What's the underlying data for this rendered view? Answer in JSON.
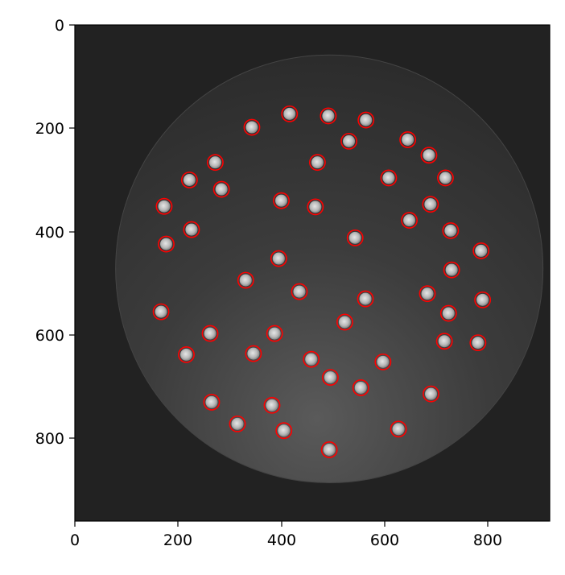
{
  "figure": {
    "x_ticks": [
      "0",
      "200",
      "400",
      "600",
      "800"
    ],
    "y_ticks": [
      "0",
      "200",
      "400",
      "600",
      "800"
    ]
  },
  "image": {
    "width": 920,
    "height": 960,
    "background_color": "#222222",
    "dish": {
      "center": [
        493,
        472
      ],
      "radius": 414
    }
  },
  "chart_data": {
    "type": "scatter",
    "title": "",
    "xlabel": "",
    "ylabel": "",
    "xlim": [
      0,
      920
    ],
    "ylim": [
      960,
      0
    ],
    "marker_color": "#ff0000",
    "marker_radius": 15,
    "circles": [
      {
        "x": 416,
        "y": 172
      },
      {
        "x": 491,
        "y": 176
      },
      {
        "x": 564,
        "y": 184
      },
      {
        "x": 343,
        "y": 198
      },
      {
        "x": 531,
        "y": 225
      },
      {
        "x": 645,
        "y": 222
      },
      {
        "x": 686,
        "y": 252
      },
      {
        "x": 470,
        "y": 266
      },
      {
        "x": 272,
        "y": 266
      },
      {
        "x": 608,
        "y": 296
      },
      {
        "x": 718,
        "y": 296
      },
      {
        "x": 222,
        "y": 300
      },
      {
        "x": 284,
        "y": 318
      },
      {
        "x": 400,
        "y": 340
      },
      {
        "x": 466,
        "y": 352
      },
      {
        "x": 689,
        "y": 347
      },
      {
        "x": 173,
        "y": 351
      },
      {
        "x": 648,
        "y": 378
      },
      {
        "x": 728,
        "y": 398
      },
      {
        "x": 226,
        "y": 396
      },
      {
        "x": 543,
        "y": 412
      },
      {
        "x": 177,
        "y": 424
      },
      {
        "x": 787,
        "y": 437
      },
      {
        "x": 395,
        "y": 452
      },
      {
        "x": 730,
        "y": 474
      },
      {
        "x": 331,
        "y": 494
      },
      {
        "x": 435,
        "y": 516
      },
      {
        "x": 683,
        "y": 520
      },
      {
        "x": 563,
        "y": 530
      },
      {
        "x": 790,
        "y": 532
      },
      {
        "x": 167,
        "y": 555
      },
      {
        "x": 724,
        "y": 558
      },
      {
        "x": 523,
        "y": 575
      },
      {
        "x": 262,
        "y": 597
      },
      {
        "x": 387,
        "y": 597
      },
      {
        "x": 716,
        "y": 612
      },
      {
        "x": 781,
        "y": 615
      },
      {
        "x": 216,
        "y": 638
      },
      {
        "x": 346,
        "y": 636
      },
      {
        "x": 458,
        "y": 647
      },
      {
        "x": 597,
        "y": 652
      },
      {
        "x": 495,
        "y": 682
      },
      {
        "x": 554,
        "y": 702
      },
      {
        "x": 690,
        "y": 714
      },
      {
        "x": 265,
        "y": 730
      },
      {
        "x": 382,
        "y": 736
      },
      {
        "x": 315,
        "y": 772
      },
      {
        "x": 405,
        "y": 785
      },
      {
        "x": 627,
        "y": 782
      },
      {
        "x": 493,
        "y": 822
      }
    ]
  }
}
